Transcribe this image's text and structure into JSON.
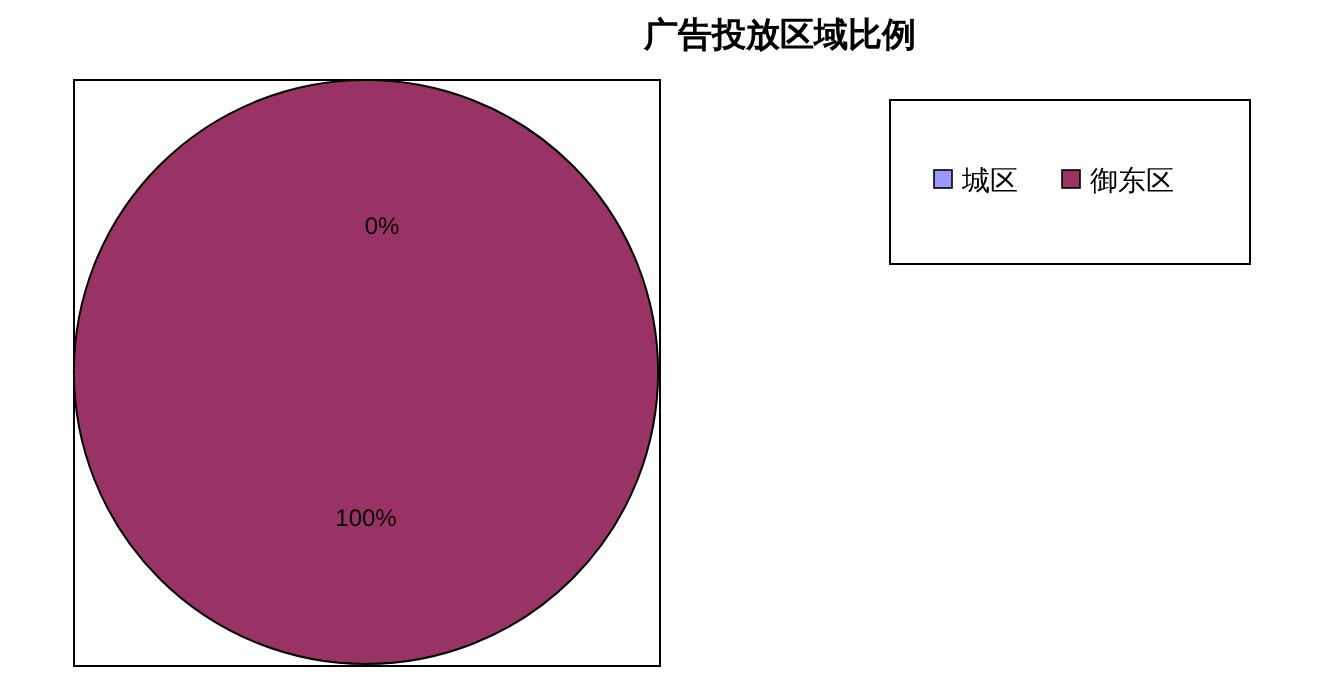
{
  "chart_data": {
    "type": "pie",
    "title": "广告投放区域比例",
    "categories": [
      "城区",
      "御东区"
    ],
    "values": [
      0,
      100
    ],
    "colors": [
      "#9999ff",
      "#993366"
    ],
    "value_labels": [
      "0%",
      "100%"
    ],
    "legend": "right"
  }
}
